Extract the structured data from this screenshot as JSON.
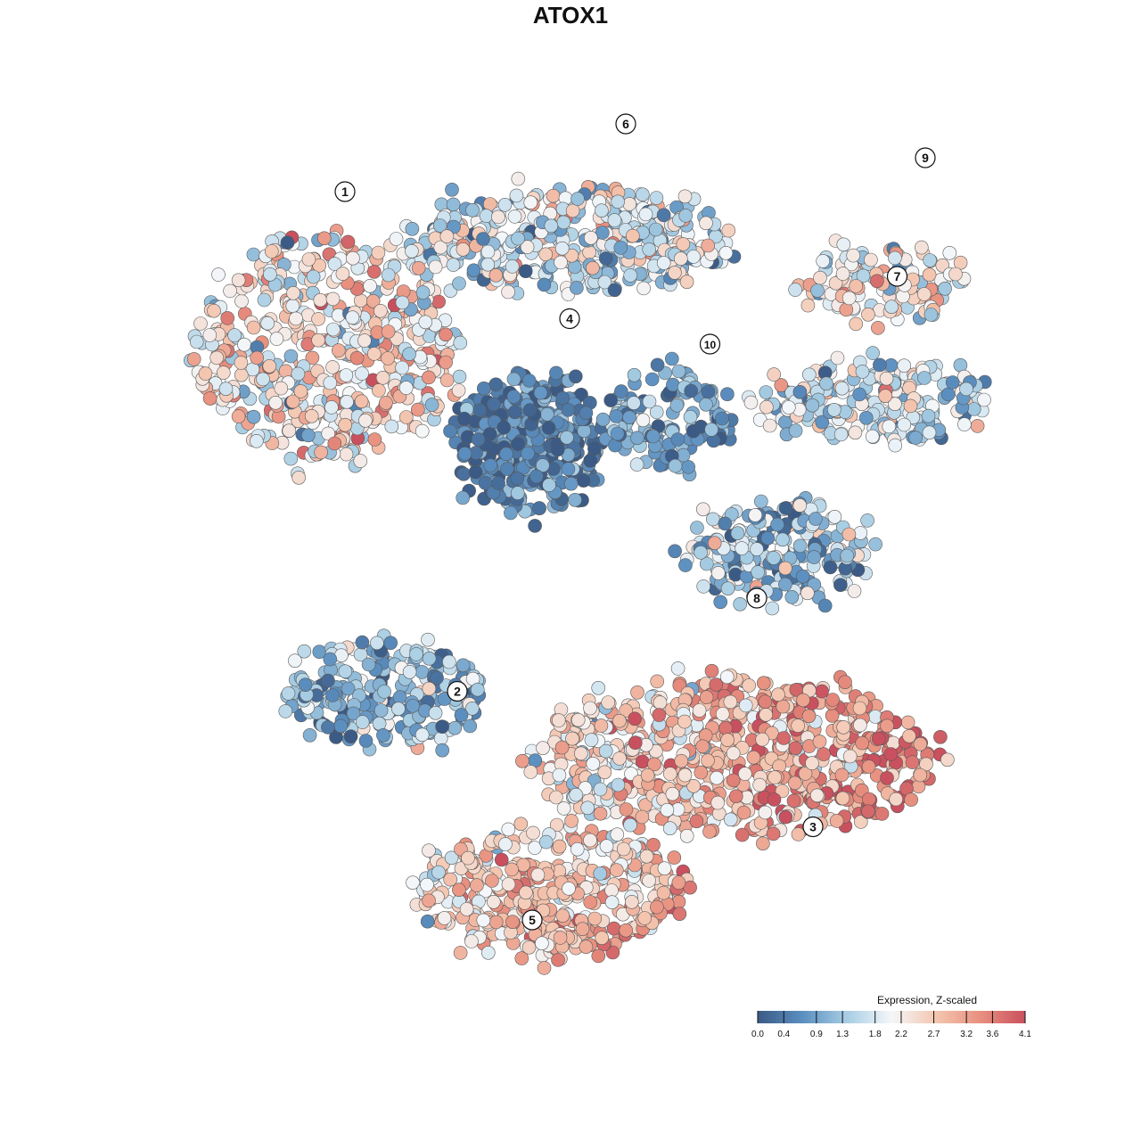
{
  "chart_data": {
    "type": "scatter",
    "title": "ATOX1",
    "xlabel": "",
    "ylabel": "",
    "grid": false,
    "legend_placement": "bottom-right",
    "colorbar": {
      "title": "Expression, Z-scaled",
      "min": 0.0,
      "max": 4.1,
      "ticks": [
        0.0,
        0.4,
        0.9,
        1.3,
        1.8,
        2.2,
        2.7,
        3.2,
        3.6,
        4.1
      ],
      "tick_labels": [
        "0.0",
        "0.4",
        "0.9",
        "1.3",
        "1.8",
        "2.2",
        "2.7",
        "3.2",
        "3.6",
        "4.1"
      ],
      "colors": [
        "#3b5a85",
        "#5b8fc0",
        "#a7cde3",
        "#f4f7fa",
        "#f4c6b0",
        "#e8907f",
        "#c9505e"
      ]
    },
    "clusters": [
      {
        "label": "1",
        "x": -2.6,
        "y": 3.0,
        "mean_expression": 2.3
      },
      {
        "label": "2",
        "x": -1.4,
        "y": -2.9,
        "mean_expression": 1.1
      },
      {
        "label": "3",
        "x": 2.4,
        "y": -4.5,
        "mean_expression": 2.9
      },
      {
        "label": "4",
        "x": -0.2,
        "y": 1.5,
        "mean_expression": 0.5
      },
      {
        "label": "5",
        "x": -0.6,
        "y": -5.6,
        "mean_expression": 2.7
      },
      {
        "label": "6",
        "x": 0.4,
        "y": 3.8,
        "mean_expression": 1.7
      },
      {
        "label": "7",
        "x": 3.3,
        "y": 2.0,
        "mean_expression": 1.8
      },
      {
        "label": "8",
        "x": 1.8,
        "y": -1.8,
        "mean_expression": 1.3
      },
      {
        "label": "9",
        "x": 3.6,
        "y": 3.4,
        "mean_expression": 2.1
      },
      {
        "label": "10",
        "x": 1.3,
        "y": 1.2,
        "mean_expression": 0.9
      }
    ]
  }
}
